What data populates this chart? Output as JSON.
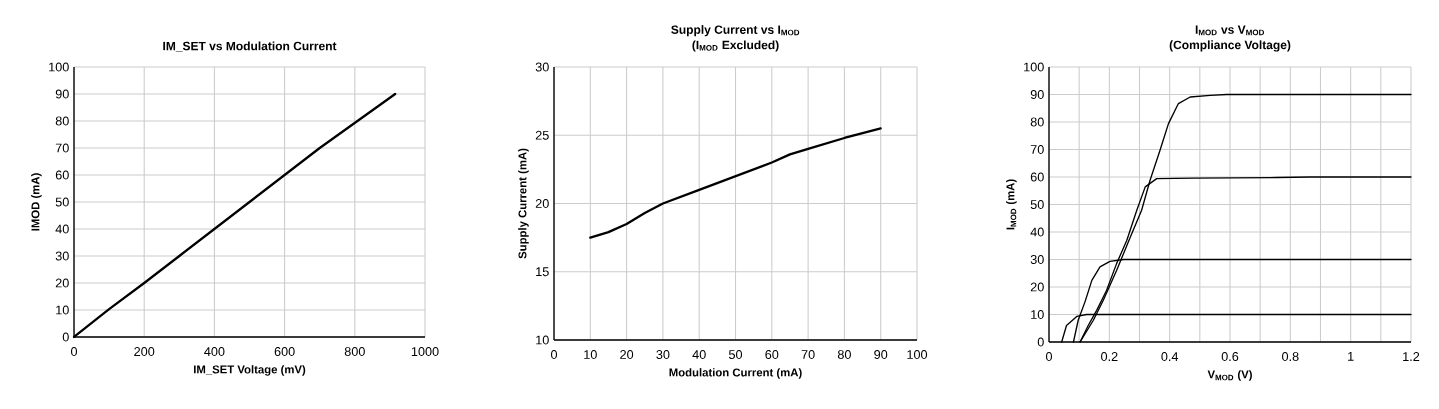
{
  "chart_data": [
    {
      "type": "line",
      "title": "IM_SET vs Modulation Current",
      "xlabel": "IM_SET Voltage (mV)",
      "ylabel": "IMOD (mA)",
      "x": [
        0,
        100,
        200,
        300,
        500,
        700,
        915
      ],
      "series": [
        {
          "color": "#000000",
          "values": [
            0,
            10.3,
            20,
            30,
            50,
            70,
            90
          ]
        }
      ],
      "xlim": [
        0,
        1000
      ],
      "ylim": [
        0,
        100
      ],
      "xticks": [
        0,
        200,
        400,
        600,
        800,
        1000
      ],
      "yticks": [
        0,
        10,
        20,
        30,
        40,
        50,
        60,
        70,
        80,
        90,
        100
      ],
      "grid": true
    },
    {
      "type": "line",
      "title": "Supply Current vs I$_{MOD}$",
      "subtitle": "(I$_{MOD}$ Excluded)",
      "xlabel": "Modulation Current (mA)",
      "ylabel": "Supply Current (mA)",
      "x": [
        10,
        15,
        20,
        25,
        30,
        40,
        50,
        60,
        65,
        70,
        80,
        90
      ],
      "series": [
        {
          "color": "#000000",
          "values": [
            17.5,
            17.9,
            18.5,
            19.3,
            20,
            21,
            22,
            23,
            23.6,
            24,
            24.8,
            25.5
          ]
        }
      ],
      "xlim": [
        0,
        100
      ],
      "ylim": [
        10,
        30
      ],
      "xticks": [
        0,
        10,
        20,
        30,
        40,
        50,
        60,
        70,
        80,
        90,
        100
      ],
      "yticks": [
        10,
        15,
        20,
        25,
        30
      ],
      "grid": true
    },
    {
      "type": "line",
      "title": "I$_{MOD}$ vs V$_{MOD}$",
      "subtitle": "(Compliance Voltage)",
      "xlabel": "V$_{MOD}$ (V)",
      "ylabel": "I$_{MOD}$ (mA)",
      "series": [
        {
          "color": "#000000",
          "x": [
            0.042,
            0.058,
            0.092,
            0.125,
            1.2
          ],
          "values": [
            0,
            6,
            9.3,
            10,
            10
          ]
        },
        {
          "color": "#000000",
          "x": [
            0.081,
            0.097,
            0.119,
            0.142,
            0.169,
            0.202,
            0.247,
            1.2
          ],
          "values": [
            0,
            8,
            14.5,
            22.4,
            27.3,
            29.3,
            30,
            30
          ]
        },
        {
          "color": "#000000",
          "x": [
            0.103,
            0.13,
            0.158,
            0.191,
            0.224,
            0.258,
            0.291,
            0.319,
            0.357,
            0.479,
            0.755,
            0.866,
            1.2
          ],
          "values": [
            0,
            6,
            11.5,
            18.8,
            28.5,
            37,
            47.9,
            56.4,
            59.4,
            59.6,
            59.8,
            60,
            60
          ]
        },
        {
          "color": "#000000",
          "x": [
            0.103,
            0.147,
            0.18,
            0.224,
            0.269,
            0.307,
            0.335,
            0.368,
            0.396,
            0.429,
            0.468,
            0.534,
            0.589,
            1.2
          ],
          "values": [
            0,
            7.9,
            15.2,
            26,
            38,
            47.9,
            58.8,
            69.7,
            79.4,
            86.7,
            89.1,
            89.7,
            90,
            90
          ]
        }
      ],
      "xlim": [
        0,
        1.2
      ],
      "ylim": [
        0,
        100
      ],
      "xticks": [
        0,
        {
          "value": 0.1,
          "label": null
        },
        0.2,
        {
          "value": 0.3,
          "label": null
        },
        0.4,
        {
          "value": 0.5,
          "label": null
        },
        0.6,
        {
          "value": 0.7,
          "label": null
        },
        0.8,
        {
          "value": 0.9,
          "label": null
        },
        1,
        {
          "value": 1.1,
          "label": null
        },
        1.2
      ],
      "yticks": [
        0,
        10,
        20,
        30,
        40,
        50,
        60,
        70,
        80,
        90,
        100
      ],
      "grid": true
    }
  ]
}
